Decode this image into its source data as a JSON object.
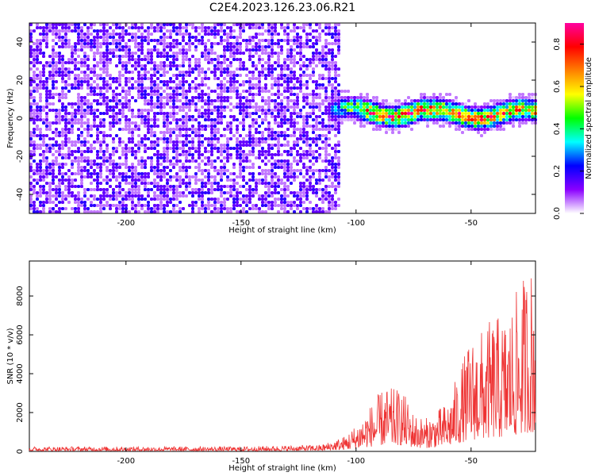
{
  "title": "C2E4.2023.126.23.06.R21",
  "chart_data": [
    {
      "type": "heatmap",
      "name": "spectrogram",
      "xlabel": "Height of straight line (km)",
      "ylabel": "Frequency (Hz)",
      "xlim": [
        -242,
        -22
      ],
      "ylim": [
        -50,
        50
      ],
      "xticks": [
        -200,
        -150,
        -100,
        -50
      ],
      "yticks": [
        -40,
        -20,
        0,
        20,
        40
      ],
      "noise_region": {
        "x_from": -242,
        "x_to": -108,
        "mean_amplitude": 0.12
      },
      "signal_band": {
        "x_from": -113,
        "x_to": -22,
        "center_freq_hz": 3,
        "half_width_hz": 7,
        "peak_amplitude": 0.9
      },
      "colorbar": {
        "label": "Normalized spectral amplitude",
        "range": [
          0.0,
          0.9
        ],
        "ticks": [
          0.0,
          0.2,
          0.4,
          0.6,
          0.8
        ],
        "tick_labels": [
          "0.0",
          "0.2",
          "0.4",
          "0.6",
          "0.8"
        ],
        "palette": [
          "#ffffff",
          "#8a00ff",
          "#0000ff",
          "#00ffff",
          "#00ff00",
          "#ffff00",
          "#ff8000",
          "#ff0000",
          "#ff00a0"
        ]
      }
    },
    {
      "type": "line",
      "name": "snr",
      "xlabel": "Height of straight line (km)",
      "ylabel": "SNR (10 * v/v)",
      "xlim": [
        -242,
        -22
      ],
      "ylim": [
        0,
        9800
      ],
      "xticks": [
        -200,
        -150,
        -100,
        -50
      ],
      "yticks": [
        0,
        2000,
        4000,
        6000,
        8000
      ],
      "color": "#ee3333",
      "envelope": [
        {
          "x": -242,
          "y": 250
        },
        {
          "x": -200,
          "y": 250
        },
        {
          "x": -150,
          "y": 250
        },
        {
          "x": -115,
          "y": 350
        },
        {
          "x": -105,
          "y": 800
        },
        {
          "x": -100,
          "y": 1400
        },
        {
          "x": -95,
          "y": 2200
        },
        {
          "x": -88,
          "y": 3300
        },
        {
          "x": -80,
          "y": 3200
        },
        {
          "x": -75,
          "y": 2000
        },
        {
          "x": -70,
          "y": 1700
        },
        {
          "x": -65,
          "y": 2100
        },
        {
          "x": -60,
          "y": 2600
        },
        {
          "x": -55,
          "y": 4300
        },
        {
          "x": -50,
          "y": 5900
        },
        {
          "x": -45,
          "y": 6300
        },
        {
          "x": -40,
          "y": 7000
        },
        {
          "x": -35,
          "y": 7000
        },
        {
          "x": -30,
          "y": 8300
        },
        {
          "x": -25,
          "y": 9700
        },
        {
          "x": -22,
          "y": 9500
        }
      ]
    }
  ]
}
